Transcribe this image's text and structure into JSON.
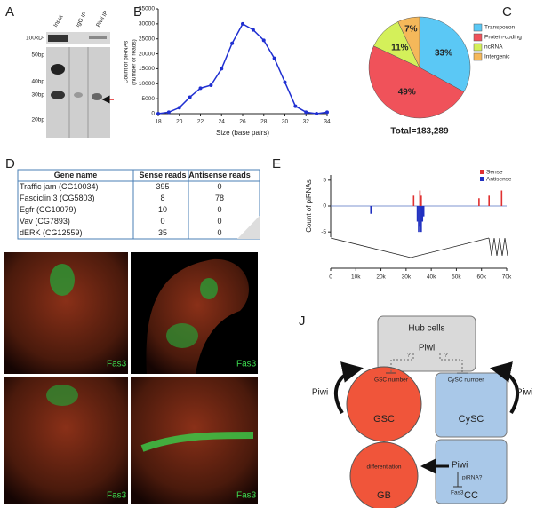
{
  "panel_a": {
    "letter": "A",
    "lanes": [
      "Input",
      "IgG IP",
      "Piwi IP"
    ],
    "markers": [
      "100kD-",
      "50bp",
      "40bp",
      "30bp",
      "20bp"
    ]
  },
  "chart_data": [
    {
      "type": "line",
      "panel": "B",
      "x": [
        18,
        19,
        20,
        21,
        22,
        23,
        24,
        25,
        26,
        27,
        28,
        29,
        30,
        31,
        32,
        33,
        34
      ],
      "values": [
        0,
        500,
        2000,
        5500,
        8500,
        9500,
        15000,
        23500,
        30000,
        28000,
        24500,
        18500,
        10500,
        2500,
        500,
        0,
        500
      ],
      "color": "#1f2fd1",
      "xlim": [
        18,
        34
      ],
      "ylim": [
        0,
        35000
      ],
      "xticks": [
        18,
        20,
        22,
        24,
        26,
        28,
        30,
        32,
        34
      ],
      "yticks": [
        0,
        5000,
        10000,
        15000,
        20000,
        25000,
        30000,
        35000
      ],
      "x_label": "Size (base pairs)",
      "y_label": [
        "Count of piRNAs",
        "(number of reads)"
      ]
    },
    {
      "type": "pie",
      "panel": "C",
      "categories": [
        "Transposon",
        "Protein-coding",
        "ncRNA",
        "Intergenic"
      ],
      "values": [
        33,
        49,
        11,
        7
      ],
      "value_labels": [
        "33%",
        "49%",
        "11%",
        "7%"
      ],
      "colors": [
        "#5bc8f5",
        "#f0525a",
        "#d4f05a",
        "#f5b85a"
      ],
      "total_label": "Total=183,289"
    },
    {
      "type": "bar",
      "panel": "E",
      "y_label": "Count of piRNAs",
      "series": [
        {
          "name": "Sense",
          "color": "#e03030",
          "x": [
            33000,
            35500,
            36000,
            59000,
            63000,
            68000
          ],
          "values": [
            2,
            3,
            2,
            1.5,
            2,
            3
          ]
        },
        {
          "name": "Antisense",
          "color": "#2030c0",
          "x": [
            16000,
            34500,
            35000,
            35500,
            36000,
            36500,
            37000
          ],
          "values": [
            -1.5,
            -3,
            -5,
            -4,
            -5,
            -3,
            -2
          ]
        }
      ],
      "xlim": [
        0,
        70000
      ],
      "ylim": [
        -6,
        6
      ],
      "xticks": [
        0,
        {
          "value": 10000,
          "label": "10k"
        },
        {
          "value": 20000,
          "label": "20k"
        },
        {
          "value": 30000,
          "label": "30k"
        },
        {
          "value": 40000,
          "label": "40k"
        },
        {
          "value": 50000,
          "label": "50k"
        },
        {
          "value": 60000,
          "label": "60k"
        },
        {
          "value": 70000,
          "label": "70k"
        }
      ],
      "yticks": [
        5,
        0,
        -5
      ]
    }
  ],
  "panel_d": {
    "letter": "D",
    "table": {
      "header": [
        "Gene name",
        "Sense reads",
        "Antisense reads"
      ],
      "rows": [
        [
          "Traffic jam (CG10034)",
          395,
          0
        ],
        [
          "Fasciclin 3 (CG5803)",
          8,
          78
        ],
        [
          "Egfr (CG10079)",
          10,
          0
        ],
        [
          "Vav (CG7893)",
          0,
          0
        ],
        [
          "dERK (CG12559)",
          35,
          0
        ]
      ]
    }
  },
  "micrographs": {
    "stain": [
      "Fas3",
      "Fas3",
      "Fas3",
      "Fas3"
    ]
  },
  "panel_j": {
    "letter": "J",
    "hub": "Hub cells",
    "hub_piwi": "Piwi",
    "q1": "?",
    "q2": "?",
    "gsc_number": "GSC number",
    "cysc_number": "CySC number",
    "left_piwi": "Piwi",
    "right_piwi": "Piwi",
    "gsc": "GSC",
    "cysc": "CySC",
    "differentiation": "differentiation",
    "cc_piwi": "Piwi",
    "pirna": "piRNA?",
    "fas3": "Fas3",
    "gb": "GB",
    "cc": "CC"
  }
}
